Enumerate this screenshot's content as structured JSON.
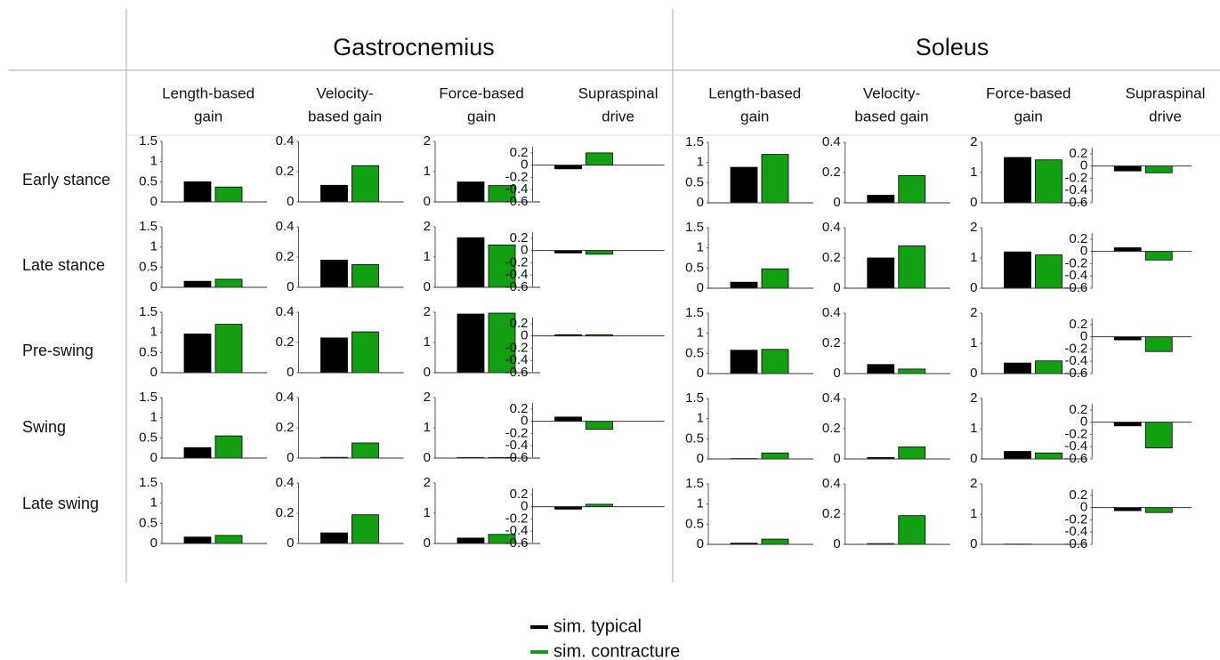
{
  "muscles": [
    {
      "name": "Gastrocnemius",
      "columns": [
        [
          "Length-based",
          "gain"
        ],
        [
          "Velocity-",
          "based gain"
        ],
        [
          "Force-based",
          "gain"
        ],
        [
          "Supraspinal",
          "drive"
        ]
      ]
    },
    {
      "name": "Soleus",
      "columns": [
        [
          "Length-based",
          "gain"
        ],
        [
          "Velocity-",
          "based gain"
        ],
        [
          "Force-based",
          "gain"
        ],
        [
          "Supraspinal",
          "drive"
        ]
      ]
    }
  ],
  "phases": [
    "Early stance",
    "Late stance",
    "Pre-swing",
    "Swing",
    "Late swing"
  ],
  "legend": [
    {
      "name": "sim. typical",
      "color": "#000000"
    },
    {
      "name": "sim. contracture",
      "color": "#12a012"
    }
  ],
  "chart_data": [
    {
      "type": "bar",
      "values": [
        0.5,
        0.37
      ],
      "ylim": [
        0,
        1.5
      ],
      "yticks": [
        0,
        0.5,
        1,
        1.5
      ]
    },
    {
      "type": "bar",
      "values": [
        0.11,
        0.24
      ],
      "ylim": [
        0,
        0.4
      ],
      "yticks": [
        0,
        0.2,
        0.4
      ]
    },
    {
      "type": "bar",
      "values": [
        0.66,
        0.54
      ],
      "ylim": [
        0,
        2
      ],
      "yticks": [
        0,
        1,
        2
      ]
    },
    {
      "type": "bar",
      "values": [
        -0.06,
        0.2
      ],
      "ylim": [
        -0.6,
        0.3
      ],
      "yticks": [
        -0.6,
        -0.4,
        -0.2,
        0,
        0.2
      ]
    },
    {
      "type": "bar",
      "values": [
        0.88,
        1.2
      ],
      "ylim": [
        0,
        1.5
      ],
      "yticks": [
        0,
        0.5,
        1,
        1.5
      ]
    },
    {
      "type": "bar",
      "values": [
        0.05,
        0.18
      ],
      "ylim": [
        0,
        0.4
      ],
      "yticks": [
        0,
        0.2,
        0.4
      ]
    },
    {
      "type": "bar",
      "values": [
        1.5,
        1.42
      ],
      "ylim": [
        0,
        2
      ],
      "yticks": [
        0,
        1,
        2
      ]
    },
    {
      "type": "bar",
      "values": [
        -0.08,
        -0.11
      ],
      "ylim": [
        -0.6,
        0.3
      ],
      "yticks": [
        -0.6,
        -0.4,
        -0.2,
        0,
        0.2
      ]
    },
    {
      "type": "bar",
      "values": [
        0.15,
        0.2
      ],
      "ylim": [
        0,
        1.5
      ],
      "yticks": [
        0,
        0.5,
        1,
        1.5
      ]
    },
    {
      "type": "bar",
      "values": [
        0.18,
        0.15
      ],
      "ylim": [
        0,
        0.4
      ],
      "yticks": [
        0,
        0.2,
        0.4
      ]
    },
    {
      "type": "bar",
      "values": [
        1.64,
        1.4
      ],
      "ylim": [
        0,
        2
      ],
      "yticks": [
        0,
        1,
        2
      ]
    },
    {
      "type": "bar",
      "values": [
        -0.04,
        -0.06
      ],
      "ylim": [
        -0.6,
        0.3
      ],
      "yticks": [
        -0.6,
        -0.4,
        -0.2,
        0,
        0.2
      ]
    },
    {
      "type": "bar",
      "values": [
        0.15,
        0.48
      ],
      "ylim": [
        0,
        1.5
      ],
      "yticks": [
        0,
        0.5,
        1,
        1.5
      ]
    },
    {
      "type": "bar",
      "values": [
        0.2,
        0.28
      ],
      "ylim": [
        0,
        0.4
      ],
      "yticks": [
        0,
        0.2,
        0.4
      ]
    },
    {
      "type": "bar",
      "values": [
        1.2,
        1.1
      ],
      "ylim": [
        0,
        2
      ],
      "yticks": [
        0,
        1,
        2
      ]
    },
    {
      "type": "bar",
      "values": [
        0.06,
        -0.14
      ],
      "ylim": [
        -0.6,
        0.3
      ],
      "yticks": [
        -0.6,
        -0.4,
        -0.2,
        0,
        0.2
      ]
    },
    {
      "type": "bar",
      "values": [
        0.96,
        1.2
      ],
      "ylim": [
        0,
        1.5
      ],
      "yticks": [
        0,
        0.5,
        1,
        1.5
      ]
    },
    {
      "type": "bar",
      "values": [
        0.23,
        0.27
      ],
      "ylim": [
        0,
        0.4
      ],
      "yticks": [
        0,
        0.2,
        0.4
      ]
    },
    {
      "type": "bar",
      "values": [
        1.94,
        1.97
      ],
      "ylim": [
        0,
        2
      ],
      "yticks": [
        0,
        1,
        2
      ]
    },
    {
      "type": "bar",
      "values": [
        0.02,
        0.02
      ],
      "ylim": [
        -0.6,
        0.3
      ],
      "yticks": [
        -0.6,
        -0.4,
        -0.2,
        0,
        0.2
      ]
    },
    {
      "type": "bar",
      "values": [
        0.58,
        0.6
      ],
      "ylim": [
        0,
        1.5
      ],
      "yticks": [
        0,
        0.5,
        1,
        1.5
      ]
    },
    {
      "type": "bar",
      "values": [
        0.06,
        0.03
      ],
      "ylim": [
        0,
        0.4
      ],
      "yticks": [
        0,
        0.2,
        0.4
      ]
    },
    {
      "type": "bar",
      "values": [
        0.35,
        0.42
      ],
      "ylim": [
        0,
        2
      ],
      "yticks": [
        0,
        1,
        2
      ]
    },
    {
      "type": "bar",
      "values": [
        -0.05,
        -0.24
      ],
      "ylim": [
        -0.6,
        0.3
      ],
      "yticks": [
        -0.6,
        -0.4,
        -0.2,
        0,
        0.2
      ]
    },
    {
      "type": "bar",
      "values": [
        0.26,
        0.55
      ],
      "ylim": [
        0,
        1.5
      ],
      "yticks": [
        0,
        0.5,
        1,
        1.5
      ]
    },
    {
      "type": "bar",
      "values": [
        0.005,
        0.1
      ],
      "ylim": [
        0,
        0.4
      ],
      "yticks": [
        0,
        0.2,
        0.4
      ]
    },
    {
      "type": "bar",
      "values": [
        0.02,
        0.02
      ],
      "ylim": [
        0,
        2
      ],
      "yticks": [
        0,
        1,
        2
      ]
    },
    {
      "type": "bar",
      "values": [
        0.07,
        -0.13
      ],
      "ylim": [
        -0.6,
        0.3
      ],
      "yticks": [
        -0.6,
        -0.4,
        -0.2,
        0,
        0.2
      ]
    },
    {
      "type": "bar",
      "values": [
        0.01,
        0.15
      ],
      "ylim": [
        0,
        1.5
      ],
      "yticks": [
        0,
        0.5,
        1,
        1.5
      ]
    },
    {
      "type": "bar",
      "values": [
        0.01,
        0.08
      ],
      "ylim": [
        0,
        0.4
      ],
      "yticks": [
        0,
        0.2,
        0.4
      ]
    },
    {
      "type": "bar",
      "values": [
        0.25,
        0.2
      ],
      "ylim": [
        0,
        2
      ],
      "yticks": [
        0,
        1,
        2
      ]
    },
    {
      "type": "bar",
      "values": [
        -0.06,
        -0.42
      ],
      "ylim": [
        -0.6,
        0.3
      ],
      "yticks": [
        -0.6,
        -0.4,
        -0.2,
        0,
        0.2
      ]
    },
    {
      "type": "bar",
      "values": [
        0.16,
        0.2
      ],
      "ylim": [
        0,
        1.5
      ],
      "yticks": [
        0,
        0.5,
        1,
        1.5
      ]
    },
    {
      "type": "bar",
      "values": [
        0.07,
        0.19
      ],
      "ylim": [
        0,
        0.4
      ],
      "yticks": [
        0,
        0.2,
        0.4
      ]
    },
    {
      "type": "bar",
      "values": [
        0.18,
        0.3
      ],
      "ylim": [
        0,
        2
      ],
      "yticks": [
        0,
        1,
        2
      ]
    },
    {
      "type": "bar",
      "values": [
        -0.04,
        0.04
      ],
      "ylim": [
        -0.6,
        0.3
      ],
      "yticks": [
        -0.6,
        -0.4,
        -0.2,
        0,
        0.2
      ]
    },
    {
      "type": "bar",
      "values": [
        0.03,
        0.13
      ],
      "ylim": [
        0,
        1.5
      ],
      "yticks": [
        0,
        0.5,
        1,
        1.5
      ]
    },
    {
      "type": "bar",
      "values": [
        0.005,
        0.19
      ],
      "ylim": [
        0,
        0.4
      ],
      "yticks": [
        0,
        0.2,
        0.4
      ]
    },
    {
      "type": "bar",
      "values": [
        0.01,
        0
      ],
      "ylim": [
        0,
        2
      ],
      "yticks": [
        0,
        1,
        2
      ]
    },
    {
      "type": "bar",
      "values": [
        -0.05,
        -0.08
      ],
      "ylim": [
        -0.6,
        0.3
      ],
      "yticks": [
        -0.6,
        -0.4,
        -0.2,
        0,
        0.2
      ]
    }
  ]
}
